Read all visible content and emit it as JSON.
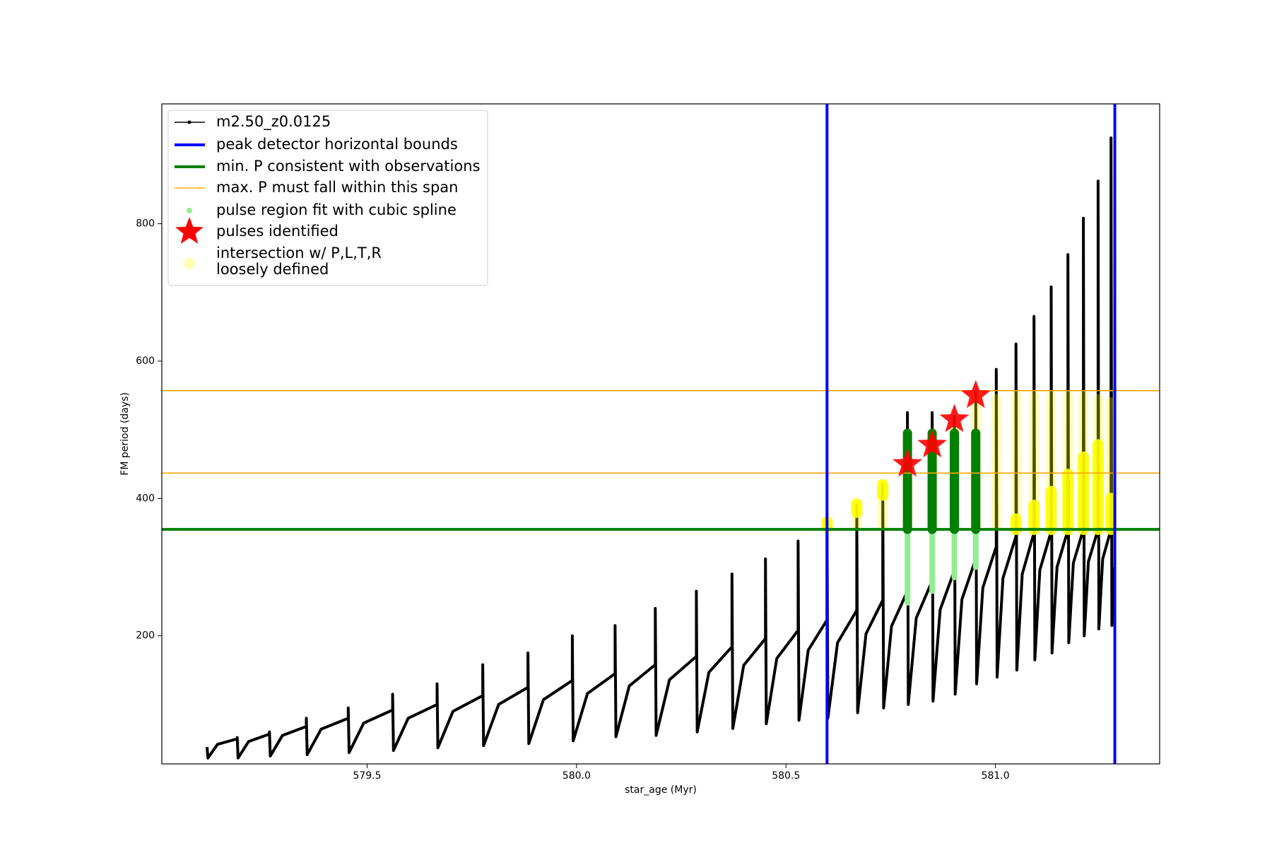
{
  "chart_data": {
    "type": "line",
    "xlabel": "star_age (Myr)",
    "ylabel": "FM period (days)",
    "xlim": [
      579.01,
      581.392
    ],
    "ylim": [
      13.5,
      974.5
    ],
    "xticks": [
      {
        "value": 579.5,
        "label": "579.5"
      },
      {
        "value": 580,
        "label": "580.0"
      },
      {
        "value": 580.5,
        "label": "580.5"
      },
      {
        "value": 581,
        "label": "581.0"
      }
    ],
    "yticks": [
      200,
      400,
      600,
      800
    ],
    "legend": "upper left",
    "series": [
      {
        "name": "m2.50_z0.0125",
        "color": "#000000",
        "x": [
          579.118,
          579.12,
          579.143,
          579.19,
          579.19,
          579.192,
          579.217,
          579.267,
          579.267,
          579.269,
          579.298,
          579.355,
          579.355,
          579.357,
          579.39,
          579.455,
          579.455,
          579.457,
          579.492,
          579.561,
          579.561,
          579.563,
          579.598,
          579.667,
          579.667,
          579.669,
          579.705,
          579.776,
          579.776,
          579.778,
          579.814,
          579.884,
          579.884,
          579.886,
          579.921,
          579.99,
          579.99,
          579.992,
          580.026,
          580.092,
          580.092,
          580.094,
          580.126,
          580.188,
          580.188,
          580.19,
          580.222,
          580.286,
          580.286,
          580.288,
          580.316,
          580.371,
          580.371,
          580.373,
          580.399,
          580.451,
          580.451,
          580.453,
          580.478,
          580.529,
          580.529,
          580.531,
          580.553,
          580.598,
          580.598,
          580.6,
          580.623,
          580.669,
          580.669,
          580.671,
          580.691,
          580.731,
          580.731,
          580.733,
          580.752,
          580.79,
          580.79,
          580.792,
          580.811,
          580.849,
          580.849,
          580.851,
          580.868,
          580.902,
          580.902,
          580.904,
          580.92,
          580.953,
          580.953,
          580.955,
          580.97,
          581.002,
          581.002,
          581.004,
          581.018,
          581.049,
          581.049,
          581.051,
          581.064,
          581.092,
          581.092,
          581.094,
          581.106,
          581.133,
          581.133,
          581.135,
          581.147,
          581.173,
          581.173,
          581.175,
          581.186,
          581.21,
          581.21,
          581.212,
          581.222,
          581.245,
          581.245,
          581.247,
          581.256,
          581.276,
          581.276,
          581.278,
          581.282
        ],
        "values": [
          38,
          22,
          42,
          50,
          52,
          22,
          46,
          57,
          60,
          25,
          55,
          68,
          80,
          27,
          64,
          80,
          95,
          30,
          73,
          92,
          115,
          33,
          80,
          100,
          130,
          37,
          90,
          113,
          158,
          40,
          100,
          125,
          175,
          43,
          107,
          135,
          200,
          47,
          116,
          145,
          215,
          53,
          127,
          158,
          240,
          55,
          136,
          170,
          265,
          60,
          147,
          184,
          290,
          65,
          157,
          196,
          312,
          72,
          167,
          208,
          338,
          77,
          179,
          223,
          370,
          80,
          190,
          237,
          390,
          88,
          203,
          252,
          420,
          95,
          214,
          265,
          525,
          100,
          226,
          280,
          525,
          105,
          238,
          295,
          520,
          115,
          253,
          312,
          555,
          130,
          270,
          330,
          588,
          140,
          284,
          345,
          625,
          150,
          290,
          350,
          665,
          165,
          296,
          352,
          708,
          175,
          300,
          354,
          755,
          190,
          306,
          355,
          808,
          200,
          308,
          355,
          862,
          210,
          312,
          355,
          925,
          215,
          300
        ]
      }
    ],
    "vlines": {
      "name": "peak detector horizontal bounds",
      "color": "#0000ff",
      "x": [
        580.598,
        581.285
      ]
    },
    "min_line": {
      "name": "min. P consistent with observations",
      "color": "#008000",
      "y": 355
    },
    "max_lines": {
      "name": "max. P must fall within this span",
      "color": "#ffa500",
      "y": [
        437,
        557
      ]
    },
    "spline": {
      "name": "pulse region fit with cubic spline",
      "color": "#90ee90",
      "x": [
        580.79,
        580.849,
        580.902,
        580.953
      ],
      "low": [
        248,
        265,
        285,
        300
      ],
      "high": [
        495,
        495,
        495,
        495
      ]
    },
    "pulses": {
      "name": "pulses identified",
      "color": "#ff0000",
      "x": [
        580.79,
        580.849,
        580.902,
        580.953
      ],
      "values": [
        450,
        478,
        515,
        550
      ]
    },
    "intersections": {
      "name": [
        "intersection w/ P,L,T,R",
        "loosely defined"
      ],
      "color": "#ffff00",
      "faint": {
        "x": [
          580.598,
          580.669,
          580.731,
          580.79,
          580.849,
          580.902,
          580.953,
          581.002,
          581.049,
          581.092,
          581.133,
          581.173,
          581.21,
          581.245,
          581.276
        ],
        "low": [
          360,
          360,
          360,
          360,
          360,
          360,
          360,
          360,
          360,
          360,
          360,
          360,
          360,
          360,
          360
        ],
        "high": [
          368,
          390,
          420,
          440,
          480,
          500,
          545,
          545,
          550,
          550,
          550,
          550,
          550,
          545,
          540
        ]
      },
      "solid": {
        "x": [
          580.598,
          580.669,
          580.731,
          581.049,
          581.092,
          581.133,
          581.173,
          581.21,
          581.245,
          581.276
        ],
        "low": [
          358,
          380,
          405,
          355,
          355,
          355,
          355,
          355,
          355,
          355
        ],
        "high": [
          366,
          392,
          420,
          370,
          390,
          410,
          435,
          460,
          478,
          400
        ]
      }
    }
  }
}
